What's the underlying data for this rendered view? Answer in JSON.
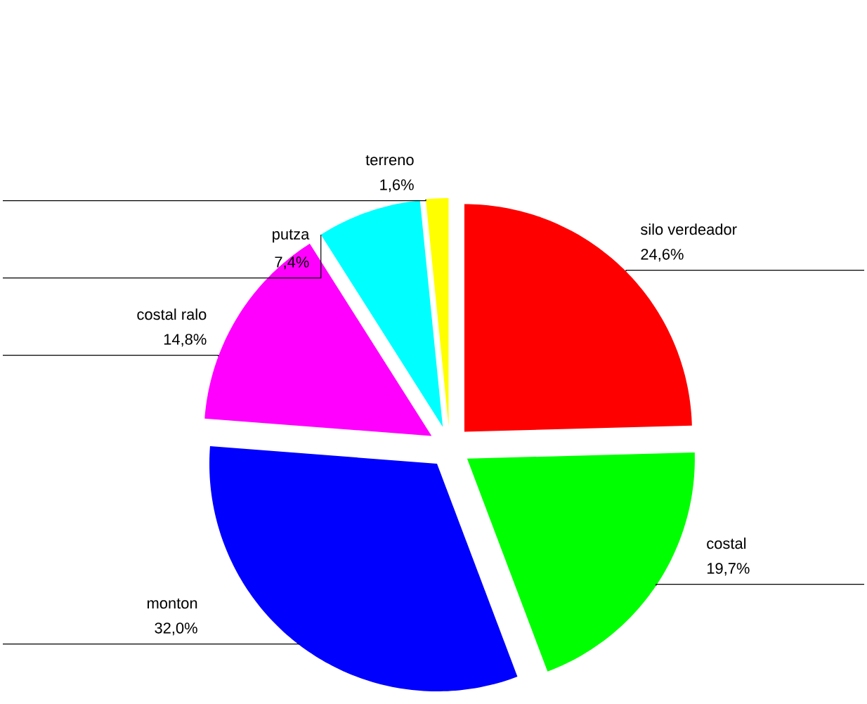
{
  "chart_data": {
    "type": "pie",
    "categories": [
      "silo verdeador",
      "costal",
      "monton",
      "costal ralo",
      "putza",
      "terreno"
    ],
    "values": [
      24.6,
      19.7,
      32.0,
      14.8,
      7.4,
      1.6
    ],
    "value_labels": [
      "24,6%",
      "19,7%",
      "32,0%",
      "14,8%",
      "7,4%",
      "1,6%"
    ],
    "colors": [
      "#ff0000",
      "#00ff00",
      "#0000ff",
      "#ff00ff",
      "#00ffff",
      "#ffff00"
    ]
  }
}
